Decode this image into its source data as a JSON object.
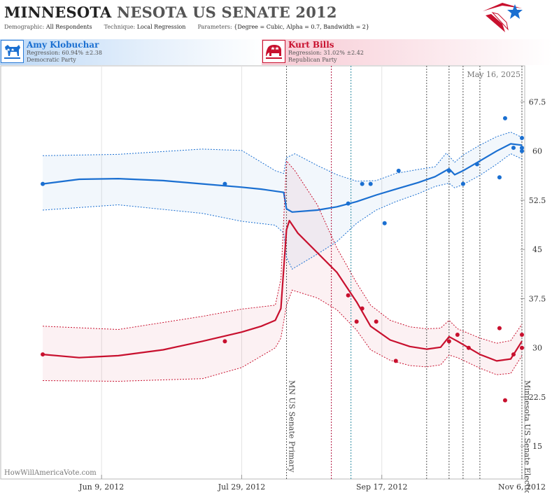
{
  "header": {
    "title_state": "MINNESOTA",
    "title_race": "NESOTA US SENATE 2012",
    "demographic_label": "Demographic:",
    "demographic_value": "All Respondents",
    "technique_label": "Technique:",
    "technique_value": "Local Regression",
    "parameters_label": "Parameters:",
    "parameters_value": "{Degree = Cubic, Alpha = 0.7, Bandwidth = 2}"
  },
  "candidates": [
    {
      "name": "Amy Klobuchar",
      "regression": "Regression: 60.94% ±2.38",
      "party": "Democratic Party",
      "icon": "donkey-icon",
      "color": "#1a6fd1"
    },
    {
      "name": "Kurt Bills",
      "regression": "Regression: 31.02% ±2.42",
      "party": "Republican Party",
      "icon": "elephant-icon",
      "color": "#c8102e"
    }
  ],
  "chart_data": {
    "type": "line",
    "date_label": "May 16, 2025",
    "credit": "HowWillAmericaVote.com",
    "x_range": [
      "2012-05-04",
      "2012-11-07"
    ],
    "ylim": [
      10,
      73
    ],
    "y_ticks": [
      15,
      22.5,
      30,
      37.5,
      45,
      52.5,
      60,
      67.5
    ],
    "x_ticks": [
      {
        "date": "2012-06-09",
        "label": "Jun 9, 2012"
      },
      {
        "date": "2012-07-29",
        "label": "Jul 29, 2012"
      },
      {
        "date": "2012-09-17",
        "label": "Sep 17, 2012"
      },
      {
        "date": "2012-11-06",
        "label": "Nov 6, 2012"
      }
    ],
    "events": [
      {
        "date": "2012-08-14",
        "label": "MN US Senate Primary",
        "color": "#555555"
      },
      {
        "date": "2012-11-06",
        "label": "Minnesota US Senate Election",
        "color": "#555555"
      }
    ],
    "reference_lines": [
      {
        "date": "2012-08-30",
        "color": "#b0103a"
      },
      {
        "date": "2012-09-06",
        "color": "#2a8aa0"
      },
      {
        "date": "2012-10-03",
        "color": "#555555"
      },
      {
        "date": "2012-10-11",
        "color": "#555555"
      },
      {
        "date": "2012-10-16",
        "color": "#555555"
      },
      {
        "date": "2012-10-22",
        "color": "#555555"
      }
    ],
    "series": [
      {
        "name": "Amy Klobuchar",
        "color": "#1a6fd1",
        "trend": [
          [
            "2012-05-19",
            55.0
          ],
          [
            "2012-06-01",
            55.7
          ],
          [
            "2012-06-15",
            55.8
          ],
          [
            "2012-07-01",
            55.5
          ],
          [
            "2012-07-15",
            55.0
          ],
          [
            "2012-07-29",
            54.5
          ],
          [
            "2012-08-05",
            54.2
          ],
          [
            "2012-08-13",
            53.7
          ],
          [
            "2012-08-14",
            51.2
          ],
          [
            "2012-08-16",
            50.7
          ],
          [
            "2012-08-25",
            51.0
          ],
          [
            "2012-09-01",
            51.5
          ],
          [
            "2012-09-08",
            52.3
          ],
          [
            "2012-09-15",
            53.3
          ],
          [
            "2012-09-22",
            54.2
          ],
          [
            "2012-09-30",
            55.2
          ],
          [
            "2012-10-06",
            56.1
          ],
          [
            "2012-10-11",
            57.3
          ],
          [
            "2012-10-13",
            56.4
          ],
          [
            "2012-10-16",
            57.0
          ],
          [
            "2012-10-22",
            58.5
          ],
          [
            "2012-10-28",
            60.0
          ],
          [
            "2012-11-02",
            61.1
          ],
          [
            "2012-11-06",
            60.9
          ]
        ],
        "upper": [
          [
            "2012-05-19",
            59.3
          ],
          [
            "2012-06-15",
            59.5
          ],
          [
            "2012-07-15",
            60.3
          ],
          [
            "2012-07-29",
            60.1
          ],
          [
            "2012-08-10",
            57.0
          ],
          [
            "2012-08-13",
            56.6
          ],
          [
            "2012-08-14",
            59.0
          ],
          [
            "2012-08-17",
            59.6
          ],
          [
            "2012-08-25",
            57.8
          ],
          [
            "2012-09-01",
            56.4
          ],
          [
            "2012-09-08",
            55.4
          ],
          [
            "2012-09-15",
            55.5
          ],
          [
            "2012-09-22",
            56.6
          ],
          [
            "2012-09-30",
            57.2
          ],
          [
            "2012-10-06",
            57.6
          ],
          [
            "2012-10-10",
            59.7
          ],
          [
            "2012-10-13",
            58.3
          ],
          [
            "2012-10-16",
            59.4
          ],
          [
            "2012-10-22",
            60.9
          ],
          [
            "2012-10-28",
            62.2
          ],
          [
            "2012-11-02",
            62.9
          ],
          [
            "2012-11-06",
            62.1
          ]
        ],
        "lower": [
          [
            "2012-05-19",
            51.0
          ],
          [
            "2012-06-15",
            51.8
          ],
          [
            "2012-07-15",
            50.5
          ],
          [
            "2012-07-29",
            49.3
          ],
          [
            "2012-08-10",
            48.7
          ],
          [
            "2012-08-13",
            47.5
          ],
          [
            "2012-08-14",
            43.8
          ],
          [
            "2012-08-16",
            42.0
          ],
          [
            "2012-08-25",
            44.3
          ],
          [
            "2012-09-01",
            46.2
          ],
          [
            "2012-09-08",
            49.0
          ],
          [
            "2012-09-15",
            51.0
          ],
          [
            "2012-09-22",
            52.3
          ],
          [
            "2012-09-30",
            53.5
          ],
          [
            "2012-10-06",
            54.6
          ],
          [
            "2012-10-11",
            55.1
          ],
          [
            "2012-10-13",
            54.4
          ],
          [
            "2012-10-16",
            54.9
          ],
          [
            "2012-10-22",
            56.3
          ],
          [
            "2012-10-28",
            58.0
          ],
          [
            "2012-11-02",
            59.6
          ],
          [
            "2012-11-06",
            58.8
          ]
        ],
        "points": [
          [
            "2012-05-19",
            55
          ],
          [
            "2012-07-23",
            55
          ],
          [
            "2012-09-05",
            52
          ],
          [
            "2012-09-10",
            55
          ],
          [
            "2012-09-13",
            55
          ],
          [
            "2012-09-18",
            49
          ],
          [
            "2012-09-23",
            57
          ],
          [
            "2012-10-11",
            57
          ],
          [
            "2012-10-16",
            55
          ],
          [
            "2012-10-21",
            58
          ],
          [
            "2012-10-29",
            56
          ],
          [
            "2012-10-31",
            65
          ],
          [
            "2012-11-03",
            60.5
          ],
          [
            "2012-11-06",
            60.5
          ],
          [
            "2012-11-06",
            60
          ],
          [
            "2012-11-06",
            62
          ]
        ]
      },
      {
        "name": "Kurt Bills",
        "color": "#c8102e",
        "trend": [
          [
            "2012-05-19",
            29.0
          ],
          [
            "2012-06-01",
            28.5
          ],
          [
            "2012-06-15",
            28.8
          ],
          [
            "2012-07-01",
            29.7
          ],
          [
            "2012-07-15",
            31.0
          ],
          [
            "2012-07-29",
            32.4
          ],
          [
            "2012-08-05",
            33.3
          ],
          [
            "2012-08-10",
            34.2
          ],
          [
            "2012-08-12",
            36.0
          ],
          [
            "2012-08-14",
            48.0
          ],
          [
            "2012-08-15",
            49.4
          ],
          [
            "2012-08-18",
            47.5
          ],
          [
            "2012-08-25",
            44.5
          ],
          [
            "2012-09-01",
            41.5
          ],
          [
            "2012-09-08",
            37.0
          ],
          [
            "2012-09-13",
            33.3
          ],
          [
            "2012-09-20",
            31.2
          ],
          [
            "2012-09-27",
            30.2
          ],
          [
            "2012-10-03",
            29.8
          ],
          [
            "2012-10-08",
            30.1
          ],
          [
            "2012-10-11",
            31.7
          ],
          [
            "2012-10-14",
            31.0
          ],
          [
            "2012-10-18",
            30.0
          ],
          [
            "2012-10-22",
            29.0
          ],
          [
            "2012-10-28",
            28.0
          ],
          [
            "2012-11-02",
            28.3
          ],
          [
            "2012-11-06",
            31.0
          ]
        ],
        "upper": [
          [
            "2012-05-19",
            33.3
          ],
          [
            "2012-06-15",
            32.8
          ],
          [
            "2012-07-15",
            34.8
          ],
          [
            "2012-07-29",
            35.9
          ],
          [
            "2012-08-10",
            36.5
          ],
          [
            "2012-08-12",
            40.5
          ],
          [
            "2012-08-14",
            58.5
          ],
          [
            "2012-08-17",
            57.0
          ],
          [
            "2012-08-25",
            51.8
          ],
          [
            "2012-09-01",
            45.2
          ],
          [
            "2012-09-08",
            39.9
          ],
          [
            "2012-09-13",
            36.5
          ],
          [
            "2012-09-20",
            34.2
          ],
          [
            "2012-09-27",
            33.2
          ],
          [
            "2012-10-03",
            32.9
          ],
          [
            "2012-10-08",
            33.0
          ],
          [
            "2012-10-11",
            34.2
          ],
          [
            "2012-10-14",
            32.9
          ],
          [
            "2012-10-22",
            31.5
          ],
          [
            "2012-10-28",
            30.7
          ],
          [
            "2012-11-02",
            31.1
          ],
          [
            "2012-11-06",
            33.6
          ]
        ],
        "lower": [
          [
            "2012-05-19",
            25.0
          ],
          [
            "2012-06-15",
            24.9
          ],
          [
            "2012-07-15",
            25.3
          ],
          [
            "2012-07-29",
            27.0
          ],
          [
            "2012-08-10",
            30.0
          ],
          [
            "2012-08-12",
            31.5
          ],
          [
            "2012-08-14",
            36.5
          ],
          [
            "2012-08-16",
            38.8
          ],
          [
            "2012-08-25",
            37.6
          ],
          [
            "2012-09-01",
            35.8
          ],
          [
            "2012-09-08",
            32.7
          ],
          [
            "2012-09-13",
            29.7
          ],
          [
            "2012-09-20",
            28.1
          ],
          [
            "2012-09-27",
            27.3
          ],
          [
            "2012-10-03",
            27.1
          ],
          [
            "2012-10-08",
            27.4
          ],
          [
            "2012-10-11",
            28.9
          ],
          [
            "2012-10-14",
            28.5
          ],
          [
            "2012-10-22",
            26.9
          ],
          [
            "2012-10-28",
            25.9
          ],
          [
            "2012-11-02",
            26.1
          ],
          [
            "2012-11-06",
            28.8
          ]
        ],
        "points": [
          [
            "2012-05-19",
            29
          ],
          [
            "2012-07-23",
            31
          ],
          [
            "2012-09-05",
            38
          ],
          [
            "2012-09-08",
            34
          ],
          [
            "2012-09-10",
            36
          ],
          [
            "2012-09-15",
            34
          ],
          [
            "2012-09-22",
            28
          ],
          [
            "2012-10-11",
            31
          ],
          [
            "2012-10-14",
            32
          ],
          [
            "2012-10-18",
            30
          ],
          [
            "2012-10-29",
            33
          ],
          [
            "2012-10-31",
            22
          ],
          [
            "2012-11-03",
            29
          ],
          [
            "2012-11-06",
            30
          ],
          [
            "2012-11-06",
            32
          ]
        ]
      }
    ]
  }
}
